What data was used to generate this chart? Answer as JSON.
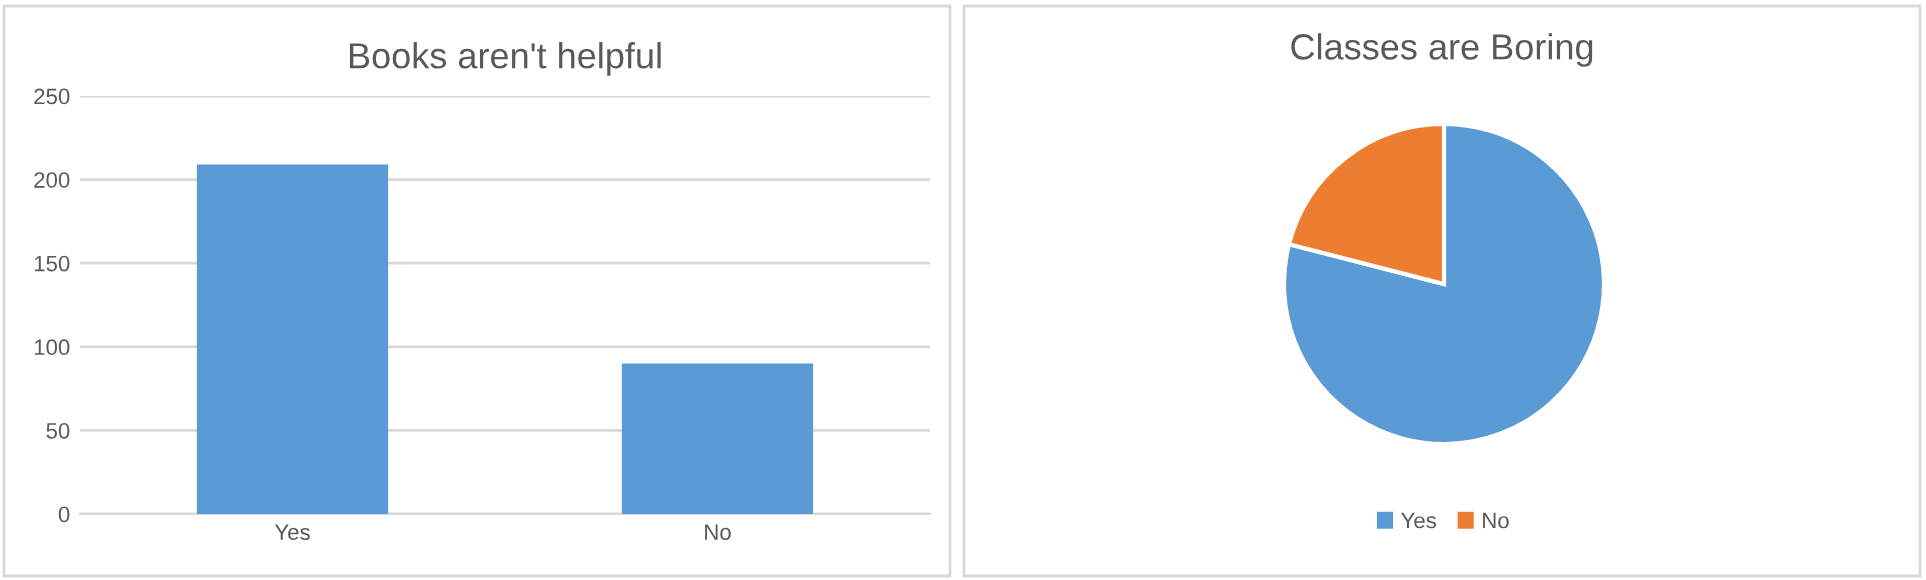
{
  "chart_data": [
    {
      "type": "bar",
      "title": "Books aren't helpful",
      "categories": [
        "Yes",
        "No"
      ],
      "values": [
        209,
        90
      ],
      "color": "#5b9bd5",
      "ylim": [
        0,
        250
      ],
      "yticks": [
        0,
        50,
        100,
        150,
        200,
        250
      ],
      "grid": "y"
    },
    {
      "type": "pie",
      "title": "Classes are Boring",
      "categories": [
        "Yes",
        "No"
      ],
      "values": [
        79,
        21
      ],
      "colors": [
        "#5b9bd5",
        "#ed7d31"
      ],
      "legend": "bottom"
    }
  ]
}
